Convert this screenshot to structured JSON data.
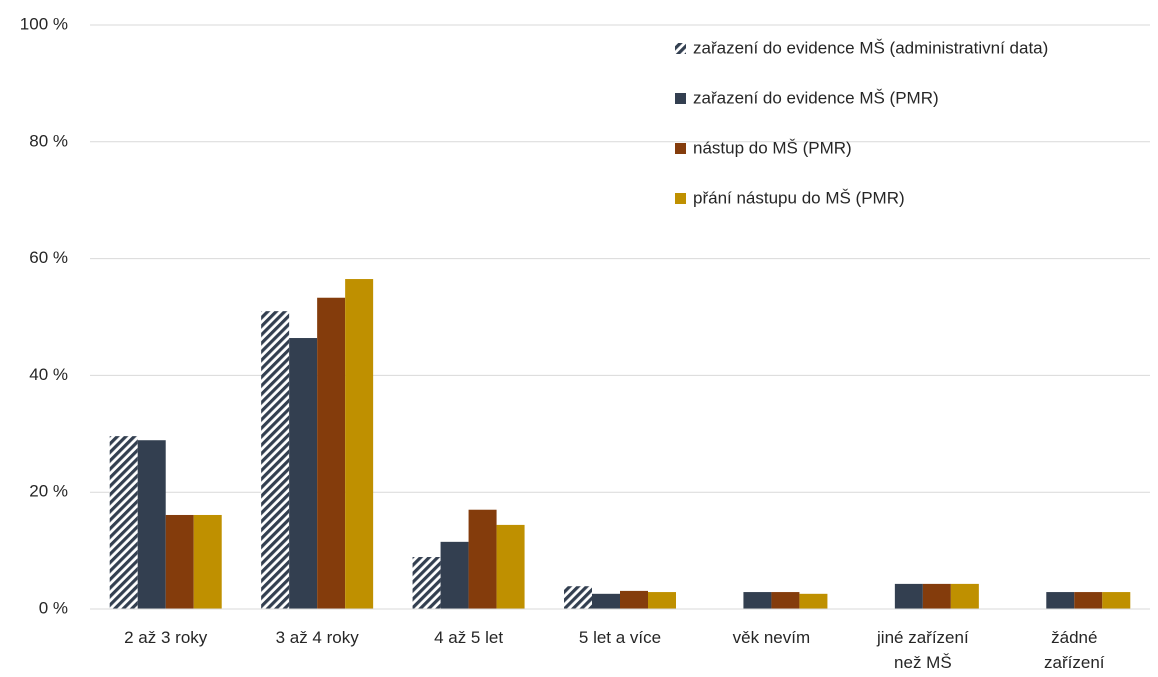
{
  "chart_data": {
    "type": "bar",
    "categories": [
      "2 až 3 roky",
      "3 až 4 roky",
      "4 až 5 let",
      "5 let a více",
      "věk nevím",
      "jiné zařízení\nnež MŠ",
      "žádné\nzařízení"
    ],
    "series": [
      {
        "name": "zařazení do evidence MŠ (administrativní data)",
        "color": "#333f50",
        "pattern": "hatch",
        "values": [
          29.6,
          51.0,
          8.9,
          3.9,
          null,
          null,
          null
        ]
      },
      {
        "name": "zařazení do evidence MŠ (PMR)",
        "color": "#333f50",
        "values": [
          28.9,
          46.4,
          11.5,
          2.6,
          2.9,
          4.3,
          2.9
        ]
      },
      {
        "name": "nástup do MŠ (PMR)",
        "color": "#843c0c",
        "values": [
          16.1,
          53.3,
          17.0,
          3.1,
          2.9,
          4.3,
          2.9
        ]
      },
      {
        "name": "přání nástupu do MŠ (PMR)",
        "color": "#bf9000",
        "values": [
          16.1,
          56.5,
          14.4,
          2.9,
          2.6,
          4.3,
          2.9
        ]
      }
    ],
    "ylim": [
      0,
      100
    ],
    "yticks": [
      {
        "value": 0,
        "label": "0 %"
      },
      {
        "value": 20,
        "label": "20 %"
      },
      {
        "value": 40,
        "label": "40 %"
      },
      {
        "value": 60,
        "label": "60 %"
      },
      {
        "value": 80,
        "label": "80 %"
      },
      {
        "value": 100,
        "label": "100 %"
      }
    ],
    "grid": true,
    "legend": "top-right"
  }
}
